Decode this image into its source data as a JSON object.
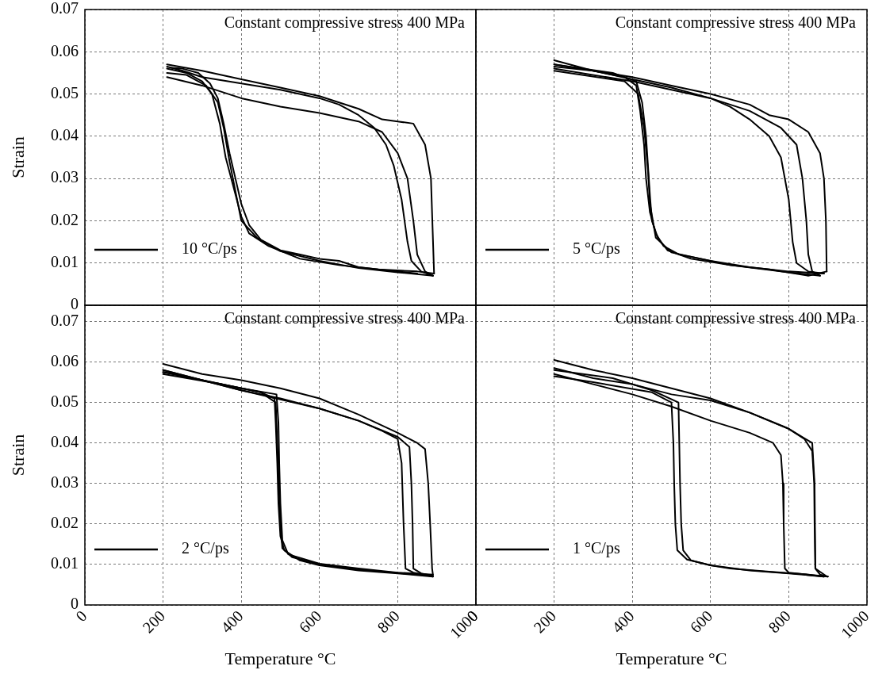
{
  "chart_data": [
    {
      "type": "line",
      "ylabel": "Strain",
      "annotations": [
        "Constant compressive stress 400 MPa"
      ],
      "xlim": [
        0,
        1000
      ],
      "xticks": [
        0,
        200,
        400,
        600,
        800,
        1000
      ],
      "ylim": [
        0,
        0.07
      ],
      "yticks": [
        0,
        0.01,
        0.02,
        0.03,
        0.04,
        0.05,
        0.06,
        0.07
      ],
      "tick_labels": "y",
      "grid": true,
      "legend": "bottom left",
      "marker": "none",
      "line_style": "solid",
      "series": [
        {
          "name": "10 °C/ps",
          "color": "#000000",
          "x": [
            210,
            250,
            300,
            400,
            500,
            600,
            650,
            700,
            740,
            770,
            790,
            810,
            825,
            835,
            860,
            890
          ],
          "values": [
            0.0565,
            0.0555,
            0.054,
            0.0525,
            0.051,
            0.049,
            0.0475,
            0.045,
            0.042,
            0.038,
            0.033,
            0.025,
            0.015,
            0.0105,
            0.008,
            0.007
          ]
        },
        {
          "color": "#000000",
          "x": [
            220,
            250,
            290,
            320,
            340,
            355,
            370,
            385,
            400,
            420,
            450,
            500,
            550,
            600,
            650,
            700,
            750,
            800,
            850
          ],
          "values": [
            0.0562,
            0.056,
            0.055,
            0.0525,
            0.049,
            0.043,
            0.036,
            0.03,
            0.024,
            0.019,
            0.0155,
            0.013,
            0.012,
            0.011,
            0.0105,
            0.009,
            0.0085,
            0.008,
            0.0075
          ]
        },
        {
          "color": "#000000",
          "x": [
            210,
            300,
            400,
            500,
            600,
            700,
            760,
            800,
            840,
            870,
            885,
            893
          ],
          "values": [
            0.057,
            0.0555,
            0.0535,
            0.0515,
            0.0495,
            0.0465,
            0.044,
            0.0435,
            0.043,
            0.038,
            0.03,
            0.0075
          ]
        },
        {
          "color": "#000000",
          "x": [
            210,
            260,
            300,
            325,
            345,
            360,
            380,
            400,
            420,
            470,
            550,
            650,
            750,
            850,
            893
          ],
          "values": [
            0.056,
            0.055,
            0.053,
            0.05,
            0.043,
            0.035,
            0.028,
            0.021,
            0.017,
            0.014,
            0.011,
            0.0095,
            0.0085,
            0.008,
            0.0075
          ]
        },
        {
          "color": "#000000",
          "x": [
            210,
            300,
            400,
            500,
            600,
            700,
            760,
            800,
            825,
            840,
            850,
            870,
            890
          ],
          "values": [
            0.054,
            0.052,
            0.049,
            0.047,
            0.0455,
            0.0435,
            0.041,
            0.036,
            0.03,
            0.02,
            0.012,
            0.008,
            0.007
          ]
        },
        {
          "color": "#000000",
          "x": [
            210,
            260,
            310,
            340,
            355,
            370,
            385,
            400,
            440,
            500,
            600,
            700,
            800,
            890
          ],
          "values": [
            0.055,
            0.0545,
            0.052,
            0.048,
            0.042,
            0.034,
            0.027,
            0.02,
            0.016,
            0.0128,
            0.0105,
            0.0088,
            0.0078,
            0.007
          ]
        }
      ]
    },
    {
      "type": "line",
      "annotations": [
        "Constant compressive stress 400 MPa"
      ],
      "xlim": [
        0,
        1000
      ],
      "xticks": [
        0,
        200,
        400,
        600,
        800,
        1000
      ],
      "ylim": [
        0,
        0.07
      ],
      "yticks": [
        0,
        0.01,
        0.02,
        0.03,
        0.04,
        0.05,
        0.06,
        0.07
      ],
      "tick_labels": false,
      "grid": true,
      "legend": "bottom left",
      "marker": "none",
      "line_style": "solid",
      "series": [
        {
          "name": "5 °C/ps",
          "color": "#000000",
          "x": [
            200,
            300,
            400,
            500,
            600,
            650,
            700,
            750,
            780,
            800,
            810,
            820,
            850,
            890
          ],
          "values": [
            0.058,
            0.0555,
            0.0535,
            0.0515,
            0.049,
            0.047,
            0.044,
            0.04,
            0.035,
            0.025,
            0.015,
            0.01,
            0.008,
            0.0075
          ]
        },
        {
          "color": "#000000",
          "x": [
            200,
            300,
            380,
            410,
            420,
            430,
            435,
            445,
            460,
            480,
            520,
            600,
            700,
            800,
            890
          ],
          "values": [
            0.0565,
            0.0555,
            0.054,
            0.052,
            0.046,
            0.038,
            0.03,
            0.022,
            0.017,
            0.014,
            0.012,
            0.0105,
            0.009,
            0.008,
            0.0075
          ]
        },
        {
          "color": "#000000",
          "x": [
            200,
            300,
            400,
            500,
            600,
            700,
            750,
            800,
            850,
            880,
            890,
            895,
            897
          ],
          "values": [
            0.057,
            0.0555,
            0.054,
            0.052,
            0.05,
            0.0475,
            0.045,
            0.044,
            0.041,
            0.036,
            0.03,
            0.02,
            0.008
          ]
        },
        {
          "color": "#000000",
          "x": [
            200,
            350,
            410,
            425,
            435,
            440,
            445,
            450,
            465,
            490,
            550,
            650,
            750,
            850,
            897
          ],
          "values": [
            0.057,
            0.055,
            0.053,
            0.048,
            0.04,
            0.033,
            0.026,
            0.02,
            0.016,
            0.013,
            0.011,
            0.0095,
            0.0085,
            0.007,
            0.008
          ]
        },
        {
          "color": "#000000",
          "x": [
            200,
            400,
            600,
            700,
            780,
            820,
            835,
            845,
            850,
            860,
            880
          ],
          "values": [
            0.056,
            0.053,
            0.049,
            0.046,
            0.042,
            0.038,
            0.03,
            0.02,
            0.012,
            0.008,
            0.007
          ]
        },
        {
          "color": "#000000",
          "x": [
            200,
            380,
            415,
            430,
            440,
            445,
            460,
            500,
            650,
            800,
            880
          ],
          "values": [
            0.0555,
            0.053,
            0.05,
            0.042,
            0.032,
            0.024,
            0.016,
            0.0125,
            0.0095,
            0.0078,
            0.007
          ]
        }
      ]
    },
    {
      "type": "line",
      "xlabel": "Temperature °C",
      "ylabel": "Strain",
      "annotations": [
        "Constant compressive stress 400 MPa"
      ],
      "xlim": [
        0,
        1000
      ],
      "xticks": [
        0,
        200,
        400,
        600,
        800,
        1000
      ],
      "ylim": [
        0,
        0.074
      ],
      "yticks": [
        0,
        0.01,
        0.02,
        0.03,
        0.04,
        0.05,
        0.06,
        0.07
      ],
      "grid": true,
      "legend": "bottom left",
      "marker": "none",
      "line_style": "solid",
      "series": [
        {
          "name": "2 °C/ps",
          "color": "#000000",
          "x": [
            200,
            300,
            400,
            500,
            600,
            700,
            760,
            800,
            810,
            815,
            820,
            840,
            890
          ],
          "values": [
            0.0575,
            0.0555,
            0.053,
            0.051,
            0.0485,
            0.0455,
            0.043,
            0.041,
            0.035,
            0.02,
            0.009,
            0.008,
            0.007
          ]
        },
        {
          "color": "#000000",
          "x": [
            200,
            350,
            450,
            485,
            488,
            492,
            495,
            500,
            510,
            550,
            600,
            700,
            800,
            890
          ],
          "values": [
            0.057,
            0.0545,
            0.0525,
            0.051,
            0.045,
            0.035,
            0.025,
            0.017,
            0.0135,
            0.011,
            0.0098,
            0.0085,
            0.0078,
            0.007
          ]
        },
        {
          "color": "#000000",
          "x": [
            200,
            300,
            400,
            500,
            600,
            700,
            800,
            850,
            870,
            878,
            883,
            888,
            890
          ],
          "values": [
            0.0595,
            0.057,
            0.0555,
            0.0535,
            0.051,
            0.047,
            0.0425,
            0.04,
            0.0385,
            0.03,
            0.02,
            0.009,
            0.0075
          ]
        },
        {
          "color": "#000000",
          "x": [
            200,
            300,
            400,
            490,
            495,
            497,
            500,
            505,
            520,
            600,
            700,
            800,
            890
          ],
          "values": [
            0.058,
            0.0555,
            0.0535,
            0.052,
            0.045,
            0.035,
            0.025,
            0.016,
            0.0125,
            0.0102,
            0.009,
            0.008,
            0.0075
          ]
        },
        {
          "color": "#000000",
          "x": [
            200,
            400,
            600,
            700,
            800,
            830,
            835,
            838,
            840,
            860,
            890
          ],
          "values": [
            0.058,
            0.053,
            0.0485,
            0.0455,
            0.0415,
            0.039,
            0.03,
            0.02,
            0.009,
            0.0078,
            0.0072
          ]
        },
        {
          "color": "#000000",
          "x": [
            200,
            300,
            450,
            488,
            492,
            496,
            500,
            505,
            530,
            600,
            700,
            890
          ],
          "values": [
            0.0575,
            0.0555,
            0.0525,
            0.05,
            0.04,
            0.03,
            0.02,
            0.014,
            0.0118,
            0.0101,
            0.0087,
            0.0072
          ]
        }
      ]
    },
    {
      "type": "line",
      "xlabel": "Temperature °C",
      "annotations": [
        "Constant compressive stress 400 MPa"
      ],
      "xlim": [
        0,
        1000
      ],
      "xticks": [
        0,
        200,
        400,
        600,
        800,
        1000
      ],
      "ylim": [
        0,
        0.074
      ],
      "yticks": [
        0,
        0.01,
        0.02,
        0.03,
        0.04,
        0.05,
        0.06,
        0.07
      ],
      "tick_labels": "x",
      "grid": true,
      "legend": "bottom left",
      "marker": "none",
      "line_style": "solid",
      "series": [
        {
          "name": "1 °C/ps",
          "color": "#000000",
          "x": [
            200,
            300,
            400,
            500,
            600,
            700,
            800,
            840,
            860,
            865,
            866,
            868,
            880,
            900
          ],
          "values": [
            0.0605,
            0.058,
            0.056,
            0.0535,
            0.051,
            0.0475,
            0.0435,
            0.041,
            0.038,
            0.03,
            0.02,
            0.009,
            0.0075,
            0.007
          ]
        },
        {
          "color": "#000000",
          "x": [
            200,
            350,
            450,
            518,
            520,
            522,
            525,
            530,
            550,
            600,
            650,
            750,
            850,
            900
          ],
          "values": [
            0.058,
            0.056,
            0.053,
            0.05,
            0.04,
            0.03,
            0.02,
            0.0135,
            0.011,
            0.0098,
            0.009,
            0.0082,
            0.0075,
            0.007
          ]
        },
        {
          "color": "#000000",
          "x": [
            200,
            300,
            400,
            500,
            600,
            700,
            760,
            780,
            785,
            787,
            790,
            800,
            890
          ],
          "values": [
            0.057,
            0.0545,
            0.052,
            0.049,
            0.0455,
            0.0425,
            0.04,
            0.037,
            0.03,
            0.02,
            0.009,
            0.008,
            0.007
          ]
        },
        {
          "color": "#000000",
          "x": [
            200,
            300,
            450,
            500,
            505,
            507,
            510,
            515,
            540,
            600,
            700,
            800,
            890
          ],
          "values": [
            0.0565,
            0.055,
            0.0525,
            0.05,
            0.04,
            0.03,
            0.02,
            0.0135,
            0.0112,
            0.0098,
            0.0085,
            0.0078,
            0.007
          ]
        },
        {
          "color": "#000000",
          "x": [
            200,
            300,
            400,
            500,
            600,
            700,
            800,
            860,
            866,
            868,
            895
          ],
          "values": [
            0.0585,
            0.056,
            0.0545,
            0.052,
            0.0505,
            0.0475,
            0.0435,
            0.04,
            0.03,
            0.009,
            0.0072
          ]
        }
      ]
    }
  ]
}
